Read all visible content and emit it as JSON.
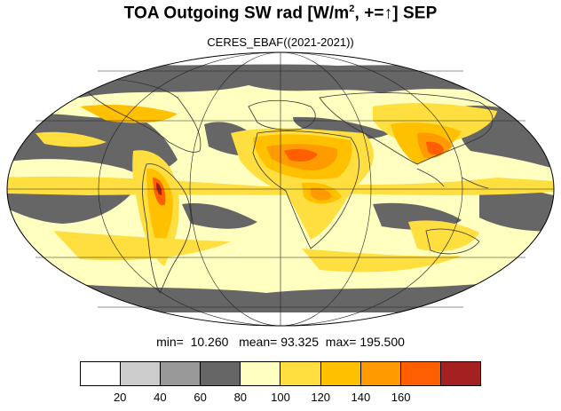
{
  "header": {
    "title_prefix": "TOA Outgoing SW rad [W/m",
    "title_sup": "2",
    "title_suffix": ", +=↑] SEP",
    "subtitle": "CERES_EBAF((2021-2021))"
  },
  "stats": {
    "min_label": "min=",
    "min_value": "10.260",
    "mean_label": "mean=",
    "mean_value": "93.325",
    "max_label": "max=",
    "max_value": "195.500"
  },
  "colorbar": {
    "colors": [
      "#ffffff",
      "#cccccc",
      "#999999",
      "#666666",
      "#ffffc0",
      "#ffdf40",
      "#ffc000",
      "#ff9a00",
      "#ff5f00",
      "#a52020"
    ],
    "ticks": [
      "20",
      "40",
      "60",
      "80",
      "100",
      "120",
      "140",
      "160"
    ]
  },
  "map": {
    "projection": "Mollweide",
    "gridlines": true,
    "coastlines": true
  }
}
